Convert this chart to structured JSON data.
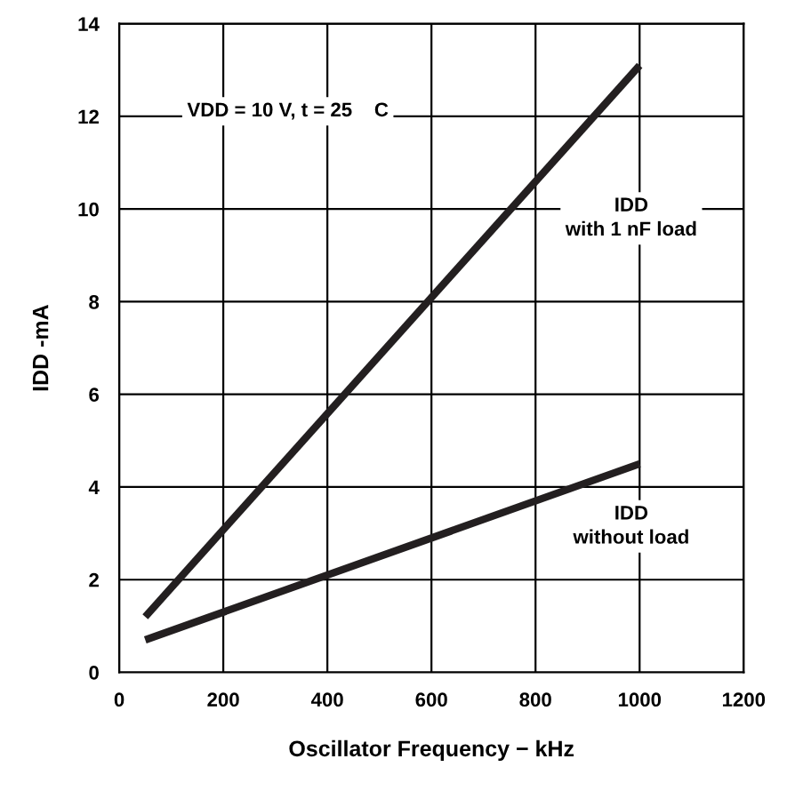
{
  "chart_data": {
    "type": "line",
    "xlabel": "Oscillator Frequency − kHz",
    "ylabel": "IDD -mA",
    "x": [
      50,
      1000
    ],
    "series": [
      {
        "name": "IDD\nwith 1 nF load",
        "color": "#231f20",
        "values": [
          1.2,
          13.1
        ]
      },
      {
        "name": "IDD\nwithout load",
        "color": "#231f20",
        "values": [
          0.7,
          4.5
        ]
      }
    ],
    "annotations": [
      "VDD = 10 V, t = 25    C"
    ],
    "xlim": [
      0,
      1200
    ],
    "xticks": [
      0,
      200,
      400,
      600,
      800,
      1000,
      1200
    ],
    "ylim": [
      0,
      14
    ],
    "yticks": [
      0,
      2,
      4,
      6,
      8,
      10,
      12,
      14
    ],
    "grid": true,
    "legend": false,
    "line_style": "solid",
    "marker": "none"
  }
}
